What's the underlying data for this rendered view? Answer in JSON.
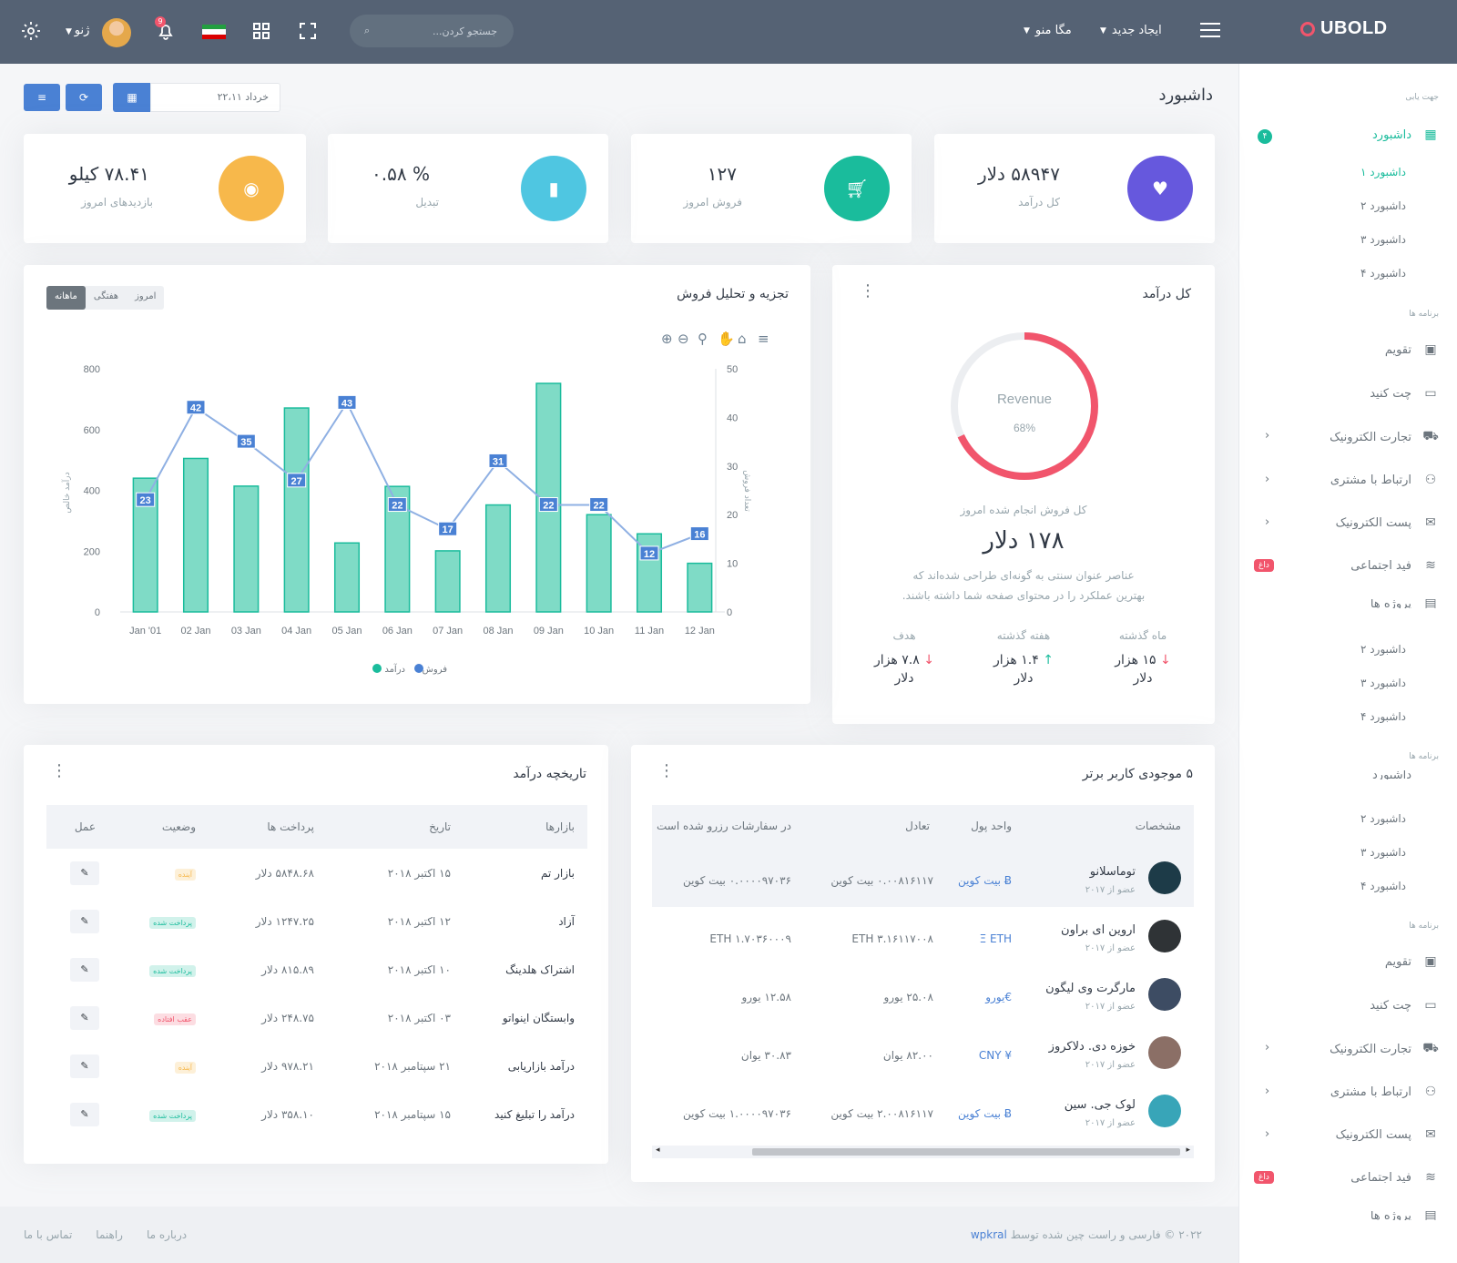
{
  "topbar": {
    "logo": "UBOLD",
    "create_new": "ایجاد جدید",
    "mega_menu": "مگا منو",
    "search_placeholder": "جستجو کردن...",
    "username": "ژنو",
    "notif_count": "9"
  },
  "page": {
    "title": "داشبورد",
    "date": "خرداد ۲۲،۱۱"
  },
  "stats": [
    {
      "value": "۵۸۹۴۷ دلار",
      "label": "کل درآمد",
      "color": "#6658dd"
    },
    {
      "value": "۱۲۷",
      "label": "فروش امروز",
      "color": "#1abc9c"
    },
    {
      "value": "% ۰.۵۸",
      "label": "تبدیل",
      "color": "#4fc6e1"
    },
    {
      "value": "۷۸.۴۱ کیلو",
      "label": "بازدیدهای امروز",
      "color": "#f7b84b"
    }
  ],
  "revenue": {
    "title": "کل درآمد",
    "donut_label": "Revenue",
    "donut_percent": "68%",
    "percent": 0.68,
    "subtitle": "کل فروش انجام شده امروز",
    "amount": "۱۷۸ دلار",
    "desc1": "عناصر عنوان سنتی به گونه‌ای طراحی شده‌اند که",
    "desc2": "بهترین عملکرد را در محتوای صفحه شما داشته باشند.",
    "cols": [
      {
        "label": "ماه گذشته",
        "value": "۱۵ هزار",
        "unit": "دلار",
        "arrow": "↓",
        "color": "#f1556c"
      },
      {
        "label": "هفته گذشته",
        "value": "۱.۴ هزار",
        "unit": "دلار",
        "arrow": "↑",
        "color": "#1abc9c"
      },
      {
        "label": "هدف",
        "value": "۷.۸ هزار",
        "unit": "دلار",
        "arrow": "↓",
        "color": "#f1556c"
      }
    ]
  },
  "sales": {
    "title": "تجزیه و تحلیل فروش",
    "tabs": [
      "امروز",
      "هفتگی",
      "ماهانه"
    ],
    "legend": [
      "فروش",
      "درآمد"
    ],
    "ylabel_left": "درآمد خالص",
    "ylabel_right": "تعداد فروش"
  },
  "chart_data": {
    "type": "bar",
    "categories": [
      "Jan '01",
      "02 Jan",
      "03 Jan",
      "04 Jan",
      "05 Jan",
      "06 Jan",
      "07 Jan",
      "08 Jan",
      "09 Jan",
      "10 Jan",
      "11 Jan",
      "12 Jan"
    ],
    "series": [
      {
        "name": "درآمد",
        "type": "bar",
        "axis": "left",
        "values": [
          440,
          505,
          414,
          671,
          227,
          413,
          201,
          352,
          752,
          320,
          257,
          160
        ],
        "color": "#7fdbc6"
      },
      {
        "name": "فروش",
        "type": "line",
        "axis": "right",
        "values": [
          23,
          42,
          35,
          27,
          43,
          22,
          17,
          31,
          22,
          22,
          12,
          16
        ],
        "color": "#4a81d4"
      }
    ],
    "ylim_left": [
      0,
      800
    ],
    "ylim_right": [
      0,
      50
    ],
    "yticks_left": [
      0,
      200,
      400,
      600,
      800
    ],
    "yticks_right": [
      0,
      10,
      20,
      30,
      40,
      50
    ],
    "ylabel_left": "درآمد خالص",
    "ylabel_right": "تعداد فروش",
    "legend": "bottom",
    "grid": false
  },
  "history": {
    "title": "تاریخچه درآمد",
    "headers": [
      "بازارها",
      "تاریخ",
      "پرداخت ها",
      "وضعیت",
      "عمل"
    ],
    "rows": [
      [
        "بازار تم",
        "۱۵ اکتبر ۲۰۱۸",
        "۵۸۴۸.۶۸ دلار",
        "آینده"
      ],
      [
        "آزاد",
        "۱۲ اکتبر ۲۰۱۸",
        "۱۲۴۷.۲۵ دلار",
        "پرداخت شده"
      ],
      [
        "اشتراک هلدینگ",
        "۱۰ اکتبر ۲۰۱۸",
        "۸۱۵.۸۹ دلار",
        "پرداخت شده"
      ],
      [
        "وابستگان اینواتو",
        "۰۳ اکتبر ۲۰۱۸",
        "۲۴۸.۷۵ دلار",
        "عقب افتاده"
      ],
      [
        "درآمد بازاریابی",
        "۲۱ سپتامبر ۲۰۱۸",
        "۹۷۸.۲۱ دلار",
        "آینده"
      ],
      [
        "درآمد را تبلیغ کنید",
        "۱۵ سپتامبر ۲۰۱۸",
        "۳۵۸.۱۰ دلار",
        "پرداخت شده"
      ]
    ]
  },
  "balances": {
    "title": "۵ موجودی کاربر برتر",
    "headers": [
      "مشخصات",
      "واحد پول",
      "تعادل",
      "در سفارشات رزرو شده است"
    ],
    "member_since": "عضو از ۲۰۱۷",
    "rows": [
      {
        "name": "توماسلانو",
        "currency": "Ƀ بیت کوین",
        "balance": "۰.۰۰۸۱۶۱۱۷ بیت کوین",
        "reserved": "۰.۰۰۰۰۹۷۰۳۶ بیت کوین",
        "avatar": "#1d3b48"
      },
      {
        "name": "اروین ای براون",
        "currency": "Ξ ETH",
        "balance": "۳.۱۶۱۱۷۰۰۸ ETH",
        "reserved": "۱.۷۰۳۶۰۰۰۹ ETH",
        "avatar": "#2f3336"
      },
      {
        "name": "مارگرت وی لیگون",
        "currency": "€یورو",
        "balance": "۲۵.۰۸ یورو",
        "reserved": "۱۲.۵۸ یورو",
        "avatar": "#3d4c63"
      },
      {
        "name": "خوزه دی. دلاکروز",
        "currency": "¥ CNY",
        "balance": "۸۲.۰۰ یوان",
        "reserved": "۳۰.۸۳ یوان",
        "avatar": "#8b6f66"
      },
      {
        "name": "لوک جی. سین",
        "currency": "Ƀ بیت کوین",
        "balance": "۲.۰۰۸۱۶۱۱۷ بیت کوین",
        "reserved": "۱.۰۰۰۰۹۷۰۳۶ بیت کوین",
        "avatar": "#38a5b8"
      }
    ]
  },
  "sidebar": {
    "sec_nav": "جهت یابی",
    "dashboard": "داشبورد",
    "dashboard_badge": "۴",
    "subs": [
      "داشبورد ۱",
      "داشبورد ۲",
      "داشبورد ۳",
      "داشبورد ۴"
    ],
    "sec_apps": "برنامه ها",
    "apps": [
      "تقویم",
      "چت کنید",
      "تجارت الکترونیک",
      "ارتباط با مشتری",
      "پست الکترونیک",
      "فید اجتماعی",
      "پروژه ها"
    ],
    "hot": "داغ"
  },
  "footer": {
    "copyright": "۲۰۲۲ © فارسی و راست چین شده توسط",
    "author": "wpkral",
    "links": [
      "درباره ما",
      "راهنما",
      "تماس با ما"
    ]
  }
}
